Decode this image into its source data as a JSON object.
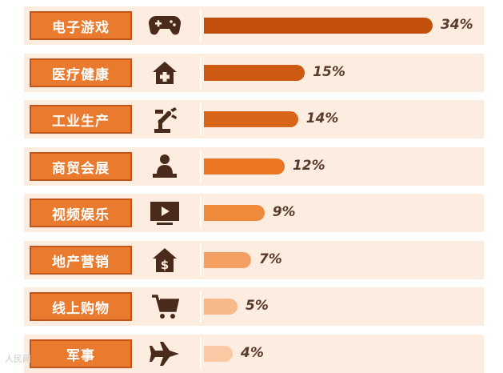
{
  "chart_data": {
    "type": "bar",
    "orientation": "horizontal",
    "categories": [
      "电子游戏",
      "医疗健康",
      "工业生产",
      "商贸会展",
      "视频娱乐",
      "地产营销",
      "线上购物",
      "军事"
    ],
    "values": [
      34,
      15,
      14,
      12,
      9,
      7,
      5,
      4
    ],
    "value_labels": [
      "34%",
      "15%",
      "14%",
      "12%",
      "9%",
      "7%",
      "5%",
      "4%"
    ],
    "icons": [
      "gamepad-icon",
      "medical-house-icon",
      "robot-arm-icon",
      "presenter-icon",
      "video-play-icon",
      "house-dollar-icon",
      "shopping-cart-icon",
      "fighter-jet-icon"
    ],
    "bar_colors": [
      "#c24f0b",
      "#cc5a12",
      "#d8651a",
      "#ea7522",
      "#ef8a3a",
      "#f4a062",
      "#f8b98a",
      "#fac9a4"
    ],
    "title": "",
    "xlabel": "",
    "ylabel": ""
  },
  "colors": {
    "row_background": "#fdece0",
    "label_box": "#e97a2e",
    "icon": "#4a2a1a"
  },
  "watermark": "人民网"
}
